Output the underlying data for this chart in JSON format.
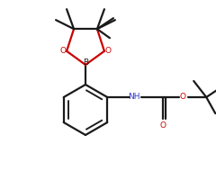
{
  "bg_color": "#ffffff",
  "bond_color": "#1a1a1a",
  "oxygen_color": "#cc0000",
  "nitrogen_color": "#3333cc",
  "lw": 1.6,
  "doff": 0.008,
  "figsize": [
    2.4,
    2.0
  ],
  "dpi": 100,
  "xlim": [
    0,
    240
  ],
  "ylim": [
    0,
    200
  ]
}
